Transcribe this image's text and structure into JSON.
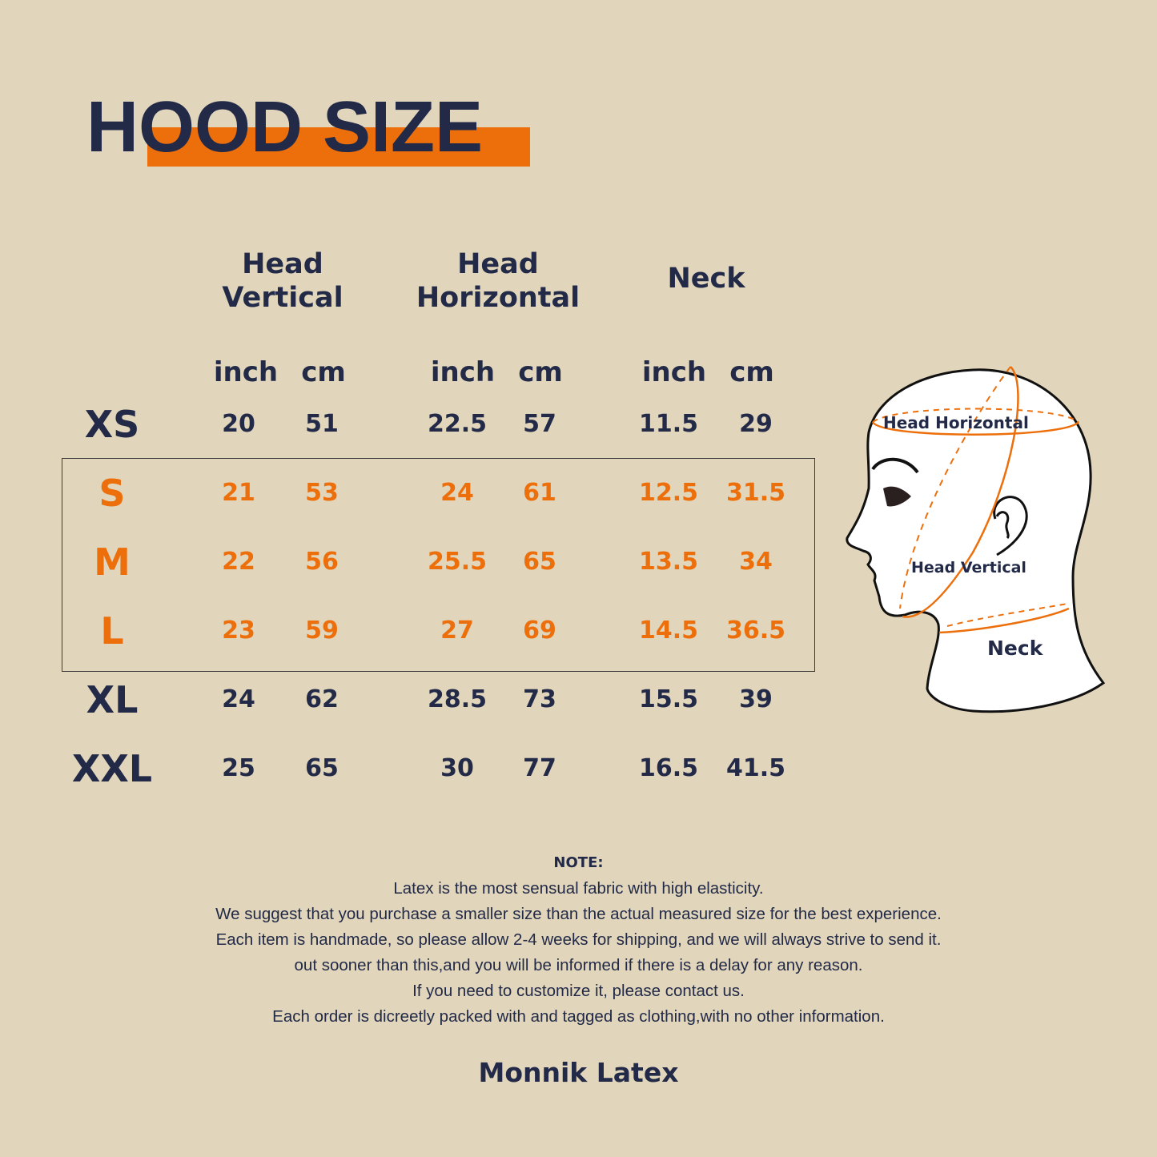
{
  "title": "HOOD SIZE",
  "colors": {
    "background": "#e1d6bb",
    "navy": "#222a48",
    "accent": "#ec6f0c"
  },
  "table": {
    "groups": [
      {
        "line1": "Head",
        "line2": "Vertical"
      },
      {
        "line1": "Head",
        "line2": "Horizontal"
      },
      {
        "line1": "Neck",
        "line2": ""
      }
    ],
    "units": [
      "inch",
      "cm",
      "inch",
      "cm",
      "inch",
      "cm"
    ],
    "rows": [
      {
        "size": "XS",
        "values": [
          "20",
          "51",
          "22.5",
          "57",
          "11.5",
          "29"
        ],
        "highlighted": false
      },
      {
        "size": "S",
        "values": [
          "21",
          "53",
          "24",
          "61",
          "12.5",
          "31.5"
        ],
        "highlighted": true
      },
      {
        "size": "M",
        "values": [
          "22",
          "56",
          "25.5",
          "65",
          "13.5",
          "34"
        ],
        "highlighted": true
      },
      {
        "size": "L",
        "values": [
          "23",
          "59",
          "27",
          "69",
          "14.5",
          "36.5"
        ],
        "highlighted": true
      },
      {
        "size": "XL",
        "values": [
          "24",
          "62",
          "28.5",
          "73",
          "15.5",
          "39"
        ],
        "highlighted": false
      },
      {
        "size": "XXL",
        "values": [
          "25",
          "65",
          "30",
          "77",
          "16.5",
          "41.5"
        ],
        "highlighted": false
      }
    ]
  },
  "diagram": {
    "labels": {
      "head_horizontal": "Head Horizontal",
      "head_vertical": "Head Vertical",
      "neck": "Neck"
    },
    "icon": "head-profile-icon"
  },
  "note": {
    "title": "NOTE:",
    "lines": [
      "Latex is the most sensual fabric with high elasticity.",
      "We suggest that you purchase a smaller size than the actual measured size for the best experience.",
      "Each item is handmade, so please allow 2-4 weeks for shipping, and we will always strive to send it.",
      "out sooner than this,and you will be informed if there is a delay for any reason.",
      "If you need to customize it, please contact us.",
      "Each order is dicreetly packed with and tagged as clothing,with no other information."
    ]
  },
  "brand": "Monnik Latex"
}
